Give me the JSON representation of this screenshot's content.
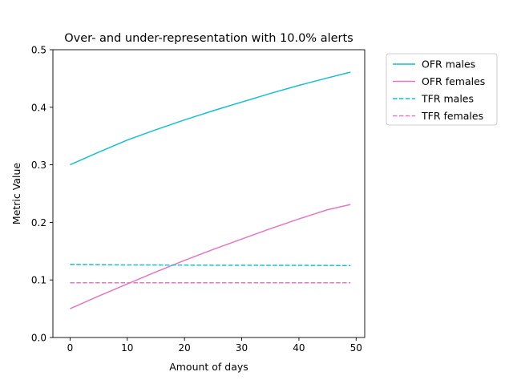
{
  "chart_data": {
    "type": "line",
    "title": "Over- and under-representation with 10.0% alerts",
    "xlabel": "Amount of days",
    "ylabel": "Metric Value",
    "xlim": [
      -3,
      51.5
    ],
    "ylim": [
      0,
      0.5
    ],
    "xticks": [
      0,
      10,
      20,
      30,
      40,
      50
    ],
    "xtick_labels": [
      "0",
      "10",
      "20",
      "30",
      "40",
      "50"
    ],
    "yticks": [
      0,
      0.1,
      0.2,
      0.3,
      0.4,
      0.5
    ],
    "ytick_labels": [
      "0.0",
      "0.1",
      "0.2",
      "0.3",
      "0.4",
      "0.5"
    ],
    "grid": false,
    "legend_position": "outside-top-right",
    "x": [
      0,
      5,
      10,
      15,
      20,
      25,
      30,
      35,
      40,
      45,
      49
    ],
    "series": [
      {
        "name": "OFR males",
        "color": "#17becf",
        "dash": "solid",
        "values": [
          0.3,
          0.322,
          0.343,
          0.361,
          0.378,
          0.394,
          0.409,
          0.424,
          0.438,
          0.451,
          0.461
        ]
      },
      {
        "name": "OFR females",
        "color": "#e377c2",
        "dash": "solid",
        "values": [
          0.05,
          0.072,
          0.093,
          0.114,
          0.134,
          0.153,
          0.171,
          0.189,
          0.206,
          0.222,
          0.231
        ]
      },
      {
        "name": "TFR males",
        "color": "#17becf",
        "dash": "dashed",
        "values": [
          0.127,
          0.1265,
          0.126,
          0.126,
          0.1258,
          0.1256,
          0.1255,
          0.1254,
          0.1253,
          0.1252,
          0.125
        ]
      },
      {
        "name": "TFR females",
        "color": "#e377c2",
        "dash": "dashed",
        "values": [
          0.095,
          0.095,
          0.095,
          0.095,
          0.095,
          0.095,
          0.095,
          0.095,
          0.095,
          0.095,
          0.095
        ]
      }
    ]
  }
}
